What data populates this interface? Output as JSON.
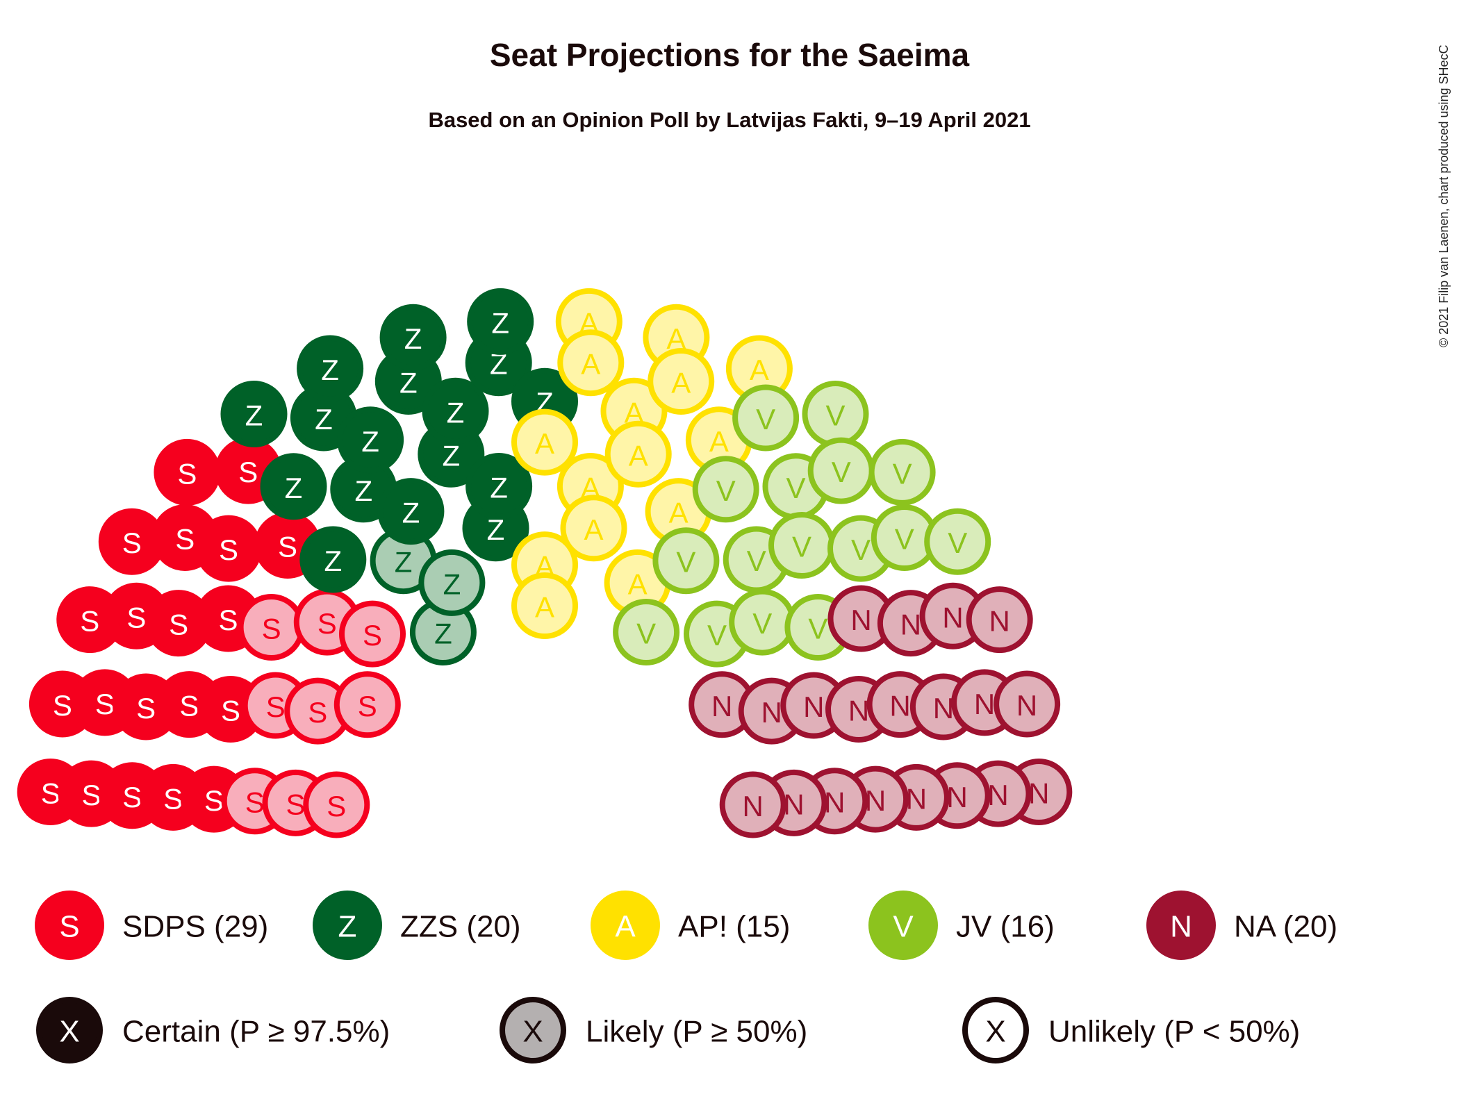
{
  "title": "Seat Projections for the Saeima",
  "subtitle": "Based on an Opinion Poll by Latvijas Fakti, 9–19 April 2021",
  "credit": "© 2021 Filip van Laenen, chart produced using SHecC",
  "chart_data": {
    "type": "parliament",
    "total_seats": 100,
    "series": [
      {
        "letter": "S",
        "legend": "SDPS (29)",
        "party": "SDPS",
        "seats": 29,
        "certain": 20,
        "likely": 9,
        "color": "#f5001e",
        "light": "#f8aebb",
        "text_color": "#ffffff",
        "light_text_color": "#f5001e"
      },
      {
        "letter": "Z",
        "legend": "ZZS (20)",
        "party": "ZZS",
        "seats": 20,
        "certain": 17,
        "likely": 3,
        "color": "#006128",
        "light": "#aacdb3",
        "text_color": "#ffffff",
        "light_text_color": "#006128"
      },
      {
        "letter": "A",
        "legend": "AP! (15)",
        "party": "AP!",
        "seats": 15,
        "certain": 0,
        "likely": 15,
        "color": "#ffe100",
        "light": "#fff5a8",
        "text_color": "#ffffff",
        "light_text_color": "#ffe100"
      },
      {
        "letter": "V",
        "legend": "JV (16)",
        "party": "JV",
        "seats": 16,
        "certain": 0,
        "likely": 16,
        "color": "#8cc31e",
        "light": "#d9ecba",
        "text_color": "#ffffff",
        "light_text_color": "#8cc31e"
      },
      {
        "letter": "N",
        "legend": "NA (20)",
        "party": "NA",
        "seats": 20,
        "certain": 0,
        "likely": 20,
        "color": "#9e1230",
        "light": "#e0b0b9",
        "text_color": "#ffffff",
        "light_text_color": "#9e1230"
      }
    ],
    "probability_legend": [
      {
        "letter": "X",
        "label": "Certain (P ≥ 97.5%)",
        "fill": "#1a0a0a",
        "stroke": "#1a0a0a",
        "text_color": "#ffffff"
      },
      {
        "letter": "X",
        "label": "Likely (P ≥ 50%)",
        "fill": "#b4b0b0",
        "stroke": "#1a0a0a",
        "text_color": "#1a0a0a"
      },
      {
        "letter": "X",
        "label": "Unlikely (P < 50%)",
        "fill": "#ffffff",
        "stroke": "#1a0a0a",
        "text_color": "#1a0a0a"
      }
    ]
  }
}
